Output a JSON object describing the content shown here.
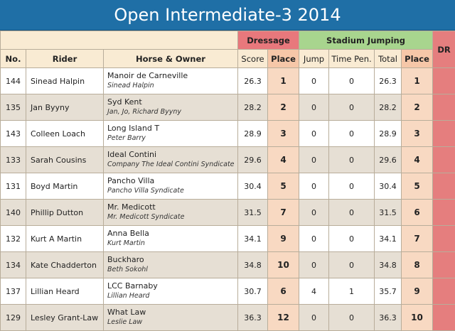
{
  "title": "Open Intermediate-3 2014",
  "groups": {
    "dressage": "Dressage",
    "stadium": "Stadium Jumping"
  },
  "columns": {
    "no": "No.",
    "rider": "Rider",
    "horse_owner": "Horse & Owner",
    "score": "Score",
    "dressage_place": "Place",
    "jump": "Jump",
    "time_pen": "Time Pen.",
    "total": "Total",
    "stadium_place": "Place",
    "dr": "DR"
  },
  "rows": [
    {
      "no": "144",
      "rider": "Sinead Halpin",
      "horse": "Manoir de Carneville",
      "owner": "Sinead Halpin",
      "score": "26.3",
      "dplace": "1",
      "jump": "0",
      "time": "0",
      "total": "26.3",
      "splace": "1"
    },
    {
      "no": "135",
      "rider": "Jan Byyny",
      "horse": "Syd Kent",
      "owner": "Jan, Jo, Richard Byyny",
      "score": "28.2",
      "dplace": "2",
      "jump": "0",
      "time": "0",
      "total": "28.2",
      "splace": "2"
    },
    {
      "no": "143",
      "rider": "Colleen Loach",
      "horse": "Long Island T",
      "owner": "Peter Barry",
      "score": "28.9",
      "dplace": "3",
      "jump": "0",
      "time": "0",
      "total": "28.9",
      "splace": "3"
    },
    {
      "no": "133",
      "rider": "Sarah Cousins",
      "horse": "Ideal Contini",
      "owner": "Company The Ideal Contini Syndicate",
      "score": "29.6",
      "dplace": "4",
      "jump": "0",
      "time": "0",
      "total": "29.6",
      "splace": "4"
    },
    {
      "no": "131",
      "rider": "Boyd Martin",
      "horse": "Pancho Villa",
      "owner": "Pancho Villa Syndicate",
      "score": "30.4",
      "dplace": "5",
      "jump": "0",
      "time": "0",
      "total": "30.4",
      "splace": "5"
    },
    {
      "no": "140",
      "rider": "Phillip Dutton",
      "horse": "Mr. Medicott",
      "owner": "Mr. Medicott Syndicate",
      "score": "31.5",
      "dplace": "7",
      "jump": "0",
      "time": "0",
      "total": "31.5",
      "splace": "6"
    },
    {
      "no": "132",
      "rider": "Kurt A Martin",
      "horse": "Anna Bella",
      "owner": "Kurt Martin",
      "score": "34.1",
      "dplace": "9",
      "jump": "0",
      "time": "0",
      "total": "34.1",
      "splace": "7"
    },
    {
      "no": "134",
      "rider": "Kate Chadderton",
      "horse": "Buckharo",
      "owner": "Beth Sokohl",
      "score": "34.8",
      "dplace": "10",
      "jump": "0",
      "time": "0",
      "total": "34.8",
      "splace": "8"
    },
    {
      "no": "137",
      "rider": "Lillian Heard",
      "horse": "LCC Barnaby",
      "owner": "Lillian Heard",
      "score": "30.7",
      "dplace": "6",
      "jump": "4",
      "time": "1",
      "total": "35.7",
      "splace": "9"
    },
    {
      "no": "129",
      "rider": "Lesley Grant-Law",
      "horse": "What Law",
      "owner": "Leslie Law",
      "score": "36.3",
      "dplace": "12",
      "jump": "0",
      "time": "0",
      "total": "36.3",
      "splace": "10"
    }
  ]
}
